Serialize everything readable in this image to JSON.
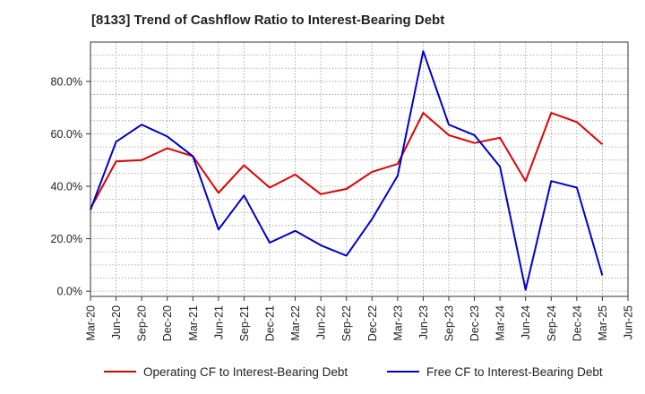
{
  "chart_data": {
    "type": "line",
    "title": "[8133]  Trend of Cashflow Ratio to Interest-Bearing Debt",
    "xlabel": "",
    "ylabel": "",
    "x": [
      "Mar-20",
      "Jun-20",
      "Sep-20",
      "Dec-20",
      "Mar-21",
      "Jun-21",
      "Sep-21",
      "Dec-21",
      "Mar-22",
      "Jun-22",
      "Sep-22",
      "Dec-22",
      "Mar-23",
      "Jun-23",
      "Sep-23",
      "Dec-23",
      "Mar-24",
      "Jun-24",
      "Sep-24",
      "Dec-24",
      "Mar-25",
      "Jun-25"
    ],
    "ylim": [
      -2,
      95
    ],
    "yticks": [
      0,
      20,
      40,
      60,
      80
    ],
    "ytick_labels": [
      "0.0%",
      "20.0%",
      "40.0%",
      "60.0%",
      "80.0%"
    ],
    "grid": true,
    "legend_position": "bottom",
    "series": [
      {
        "name": "Operating CF to Interest-Bearing Debt",
        "color": "#e00000",
        "values": [
          31.5,
          49.5,
          50.0,
          54.5,
          51.5,
          37.5,
          48.0,
          39.5,
          44.5,
          37.0,
          39.0,
          45.5,
          48.5,
          68.0,
          59.5,
          56.5,
          58.5,
          42.0,
          68.0,
          64.5,
          56.0,
          null
        ]
      },
      {
        "name": "Free CF to Interest-Bearing Debt",
        "color": "#0000cc",
        "values": [
          31.0,
          57.0,
          63.5,
          59.0,
          51.5,
          23.5,
          36.5,
          18.5,
          23.0,
          17.5,
          13.5,
          27.5,
          44.0,
          91.5,
          63.5,
          59.5,
          47.5,
          0.5,
          42.0,
          39.5,
          6.0,
          null
        ]
      }
    ]
  }
}
